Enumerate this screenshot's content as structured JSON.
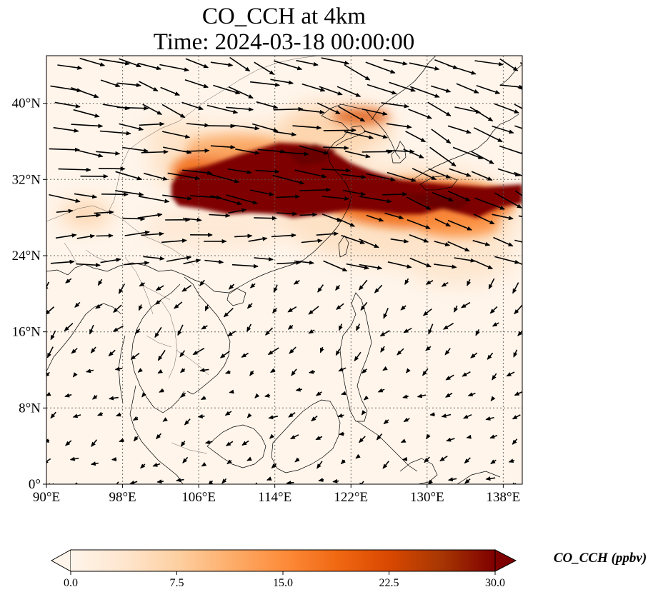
{
  "title": {
    "line1": "CO_CCH at 4km",
    "line2": "Time: 2024-03-18 00:00:00"
  },
  "map": {
    "lon_range": [
      90,
      140
    ],
    "lat_range": [
      0,
      45
    ],
    "lon_ticks": [
      {
        "value": 90,
        "label": "90°E"
      },
      {
        "value": 98,
        "label": "98°E"
      },
      {
        "value": 106,
        "label": "106°E"
      },
      {
        "value": 114,
        "label": "114°E"
      },
      {
        "value": 122,
        "label": "122°E"
      },
      {
        "value": 130,
        "label": "130°E"
      },
      {
        "value": 138,
        "label": "138°E"
      }
    ],
    "lat_ticks": [
      {
        "value": 0,
        "label": "0°"
      },
      {
        "value": 8,
        "label": "8°N"
      },
      {
        "value": 16,
        "label": "16°N"
      },
      {
        "value": 24,
        "label": "24°N"
      },
      {
        "value": 32,
        "label": "32°N"
      },
      {
        "value": 40,
        "label": "40°N"
      }
    ],
    "gridlines": true,
    "plume_max_value": 30.0
  },
  "colorbar": {
    "label": "CO_CCH (ppbv)",
    "min": 0.0,
    "max": 30.0,
    "ticks": [
      {
        "value": 0.0,
        "label": "0.0"
      },
      {
        "value": 7.5,
        "label": "7.5"
      },
      {
        "value": 15.0,
        "label": "15.0"
      },
      {
        "value": 22.5,
        "label": "22.5"
      },
      {
        "value": 30.0,
        "label": "30.0"
      }
    ],
    "extend": "both",
    "colors": [
      "#fff5eb",
      "#fee6ce",
      "#fdd0a2",
      "#fdae6b",
      "#fd8d3c",
      "#f16913",
      "#d94801",
      "#a63603",
      "#7f0000"
    ]
  }
}
